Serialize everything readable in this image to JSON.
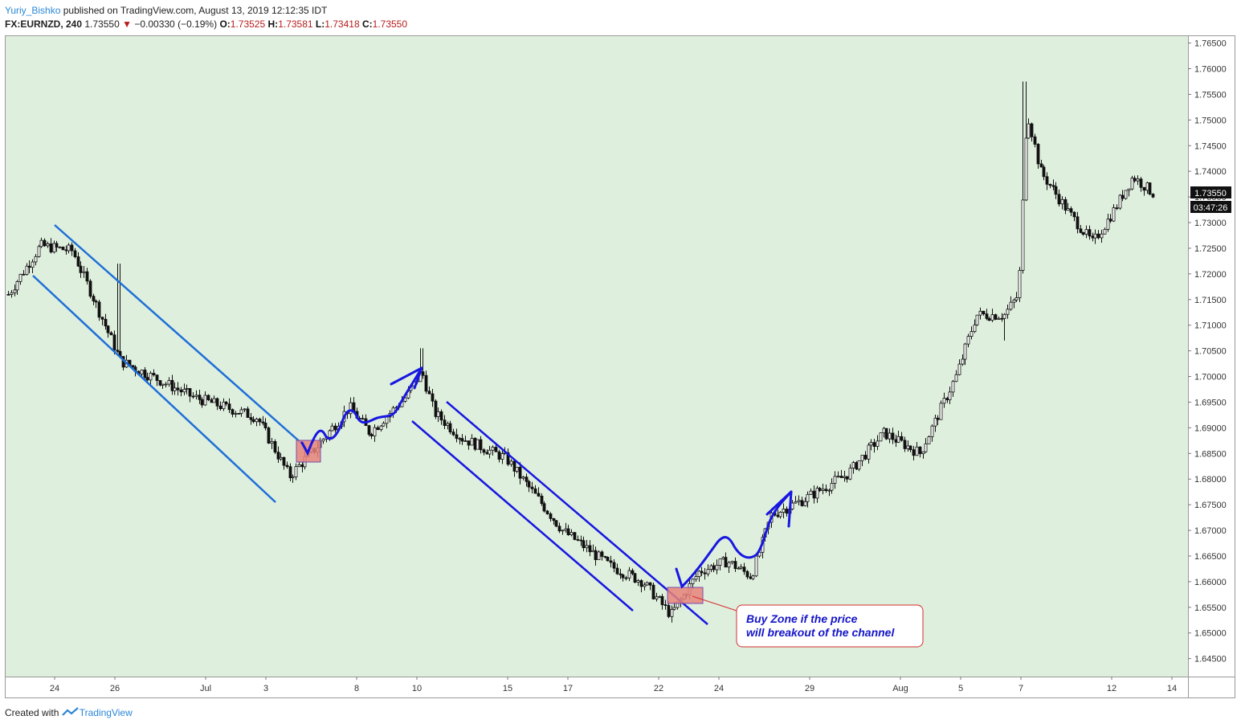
{
  "header": {
    "author": "Yuriy_Bishko",
    "published_text": "published on TradingView.com, August 13, 2019 12:12:35 IDT",
    "symbol": "FX:EURNZD, 240",
    "last": "1.73550",
    "change_arrow": "▼",
    "change": "−0.00330 (−0.19%)",
    "o_label": "O:",
    "o": "1.73525",
    "h_label": "H:",
    "h": "1.73581",
    "l_label": "L:",
    "l": "1.73418",
    "c_label": "C:",
    "c": "1.73550"
  },
  "footer": {
    "created_with": "Created with",
    "brand": "TradingView",
    "logo_icon": "tradingview-logo-icon"
  },
  "price_badge": {
    "price": "1.73550",
    "countdown": "03:47:26"
  },
  "annotation": {
    "line1": "Buy Zone if the price",
    "line2": "will breakout of the channel"
  },
  "colors": {
    "background": "#dfefdd",
    "up_candle": "#ffffff",
    "down_candle": "#111111",
    "channel_1": "#1e6fd9",
    "channel_2": "#1717e0",
    "buy_zone": "#e8827a",
    "callout_border": "#d32f2f",
    "callout_text": "#1515c8"
  },
  "chart_data": {
    "type": "candlestick",
    "symbol": "FX:EURNZD",
    "timeframe": "240",
    "ylim": [
      1.6415,
      1.7665
    ],
    "y_ticks": [
      "1.76500",
      "1.76000",
      "1.75500",
      "1.75000",
      "1.74500",
      "1.74000",
      "1.73500",
      "1.73000",
      "1.72500",
      "1.72000",
      "1.71500",
      "1.71000",
      "1.70500",
      "1.70000",
      "1.69500",
      "1.69000",
      "1.68500",
      "1.68000",
      "1.67500",
      "1.67000",
      "1.66500",
      "1.66000",
      "1.65500",
      "1.65000",
      "1.64500"
    ],
    "x_ticks": [
      "24",
      "26",
      "Jul",
      "3",
      "8",
      "10",
      "15",
      "17",
      "22",
      "24",
      "29",
      "Aug",
      "5",
      "7",
      "12",
      "14"
    ],
    "key_prices": [
      {
        "label": "start",
        "value": 1.716
      },
      {
        "label": "late-June high",
        "value": 1.727
      },
      {
        "label": "early-July low",
        "value": 1.6805
      },
      {
        "label": "July-10 high",
        "value": 1.7055
      },
      {
        "label": "July-22 low",
        "value": 1.6535
      },
      {
        "label": "Aug-7 spike high",
        "value": 1.7575
      },
      {
        "label": "Aug-7 low",
        "value": 1.707
      },
      {
        "label": "last",
        "value": 1.7355
      }
    ],
    "last_price": 1.7355
  }
}
